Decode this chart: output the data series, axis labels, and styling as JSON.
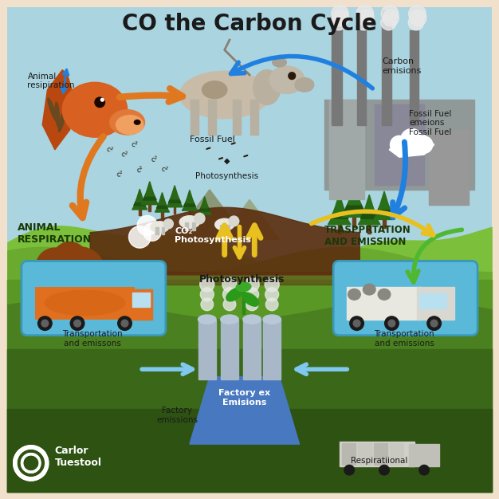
{
  "title": "CO the Carbon Cycle",
  "title_fontsize": 20,
  "title_fontweight": "bold",
  "background_outer": "#f0e0cc",
  "labels": {
    "animal_respiration": "Animal\nresipiration",
    "fossil_fuel": "Fossil Fuel",
    "carbon_emissions": "Carbon\nemisions",
    "fossil_fuel_emissions": "Fossil Fuel\nemeions\nFossil Fuel",
    "photosynthesis_upper": "Photosynthesis",
    "animal_respiration_lower": "ANIMAL\nRESPIRATION",
    "transportation_emission": "TRASPPRTATION\nAND EMISSIION",
    "co2_photosynthesis": "CO₂\nPhotosynthesis",
    "photosynthesis_mid": "Photosynthesis",
    "transport_left": "Transportation\nand emissons",
    "transport_right": "Transportation\nand emissions",
    "factory_emissions": "Factory\nemissions",
    "factory_ex": "Factory ex\nEmisions",
    "respirational": "Respiratiional",
    "brand_name": "Carlor\nTuestool"
  },
  "colors": {
    "sky": "#aad4e0",
    "sky_bottom": "#c5e5ee",
    "ground_hill1": "#7bbf3a",
    "ground_hill2": "#6aaa2e",
    "ground_mid": "#5a9825",
    "ground_dark": "#4a8020",
    "ground_lower": "#3a6818",
    "ground_bottom": "#2d5212",
    "soil_brown": "#5c3010",
    "arrow_orange": "#e07820",
    "arrow_blue": "#2080e0",
    "arrow_yellow": "#e8c020",
    "arrow_green": "#50b830",
    "arrow_light_blue": "#80c8f0",
    "text_dark": "#1a1a1a",
    "text_green_bold": "#1a3808",
    "box_truck_blue": "#50b0d8",
    "factory_steel": "#8898a8",
    "factory_blue_base": "#4878b8",
    "brand_blue": "#1a3888",
    "white": "#ffffff",
    "dog_orange": "#d86020",
    "dog_dark": "#b84810",
    "cow_body": "#c8bca8",
    "tree_green": "#2a6818",
    "tree_dark": "#1e5010",
    "tree_trunk": "#6a4020"
  }
}
